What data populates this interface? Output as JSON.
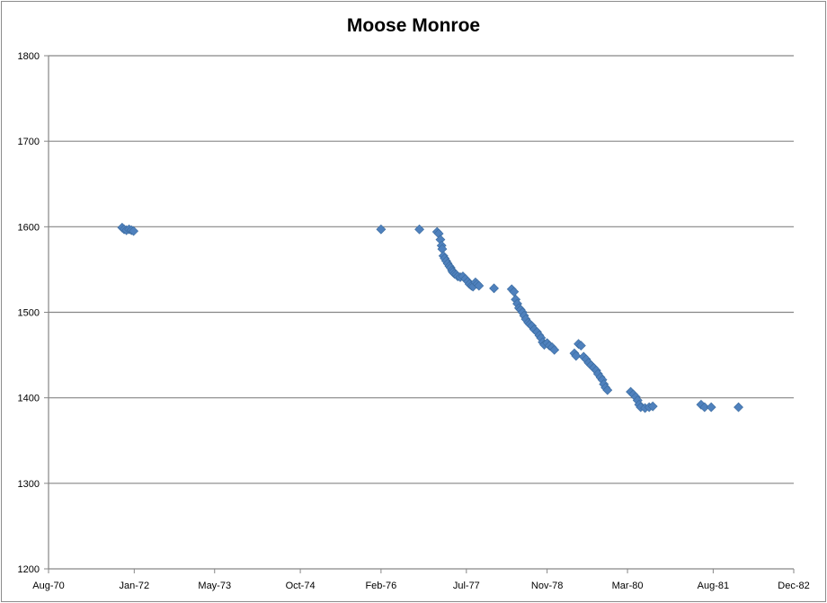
{
  "chart_data": {
    "type": "scatter",
    "title": "Moose Monroe",
    "xlabel": "",
    "ylabel": "",
    "x_axis": {
      "kind": "date",
      "min": "1970-08-01",
      "max": "1982-12-01",
      "ticks": [
        "1970-08-01",
        "1972-01-01",
        "1973-05-01",
        "1974-10-01",
        "1976-02-01",
        "1977-07-01",
        "1978-11-01",
        "1980-03-01",
        "1981-08-01",
        "1982-12-01"
      ],
      "tick_labels": [
        "Aug-70",
        "Jan-72",
        "May-73",
        "Oct-74",
        "Feb-76",
        "Jul-77",
        "Nov-78",
        "Mar-80",
        "Aug-81",
        "Dec-82"
      ]
    },
    "y_axis": {
      "min": 1200,
      "max": 1800,
      "ticks": [
        1200,
        1300,
        1400,
        1500,
        1600,
        1700,
        1800
      ],
      "tick_labels": [
        "1200",
        "1300",
        "1400",
        "1500",
        "1600",
        "1700",
        "1800"
      ]
    },
    "grid": "horizontal",
    "legend": "none",
    "marker": {
      "shape": "diamond",
      "color": "#4F81BD"
    },
    "series": [
      {
        "points": [
          {
            "x": "1971-10-20",
            "y": 1599
          },
          {
            "x": "1971-11-01",
            "y": 1597
          },
          {
            "x": "1971-11-15",
            "y": 1596
          },
          {
            "x": "1971-12-01",
            "y": 1597
          },
          {
            "x": "1971-12-15",
            "y": 1596
          },
          {
            "x": "1971-12-28",
            "y": 1595
          },
          {
            "x": "1976-02-01",
            "y": 1597
          },
          {
            "x": "1976-09-20",
            "y": 1597
          },
          {
            "x": "1977-01-05",
            "y": 1594
          },
          {
            "x": "1977-01-15",
            "y": 1592
          },
          {
            "x": "1977-01-25",
            "y": 1585
          },
          {
            "x": "1977-02-01",
            "y": 1578
          },
          {
            "x": "1977-02-05",
            "y": 1574
          },
          {
            "x": "1977-02-12",
            "y": 1566
          },
          {
            "x": "1977-02-20",
            "y": 1563
          },
          {
            "x": "1977-03-01",
            "y": 1560
          },
          {
            "x": "1977-03-10",
            "y": 1557
          },
          {
            "x": "1977-03-20",
            "y": 1554
          },
          {
            "x": "1977-03-28",
            "y": 1552
          },
          {
            "x": "1977-04-05",
            "y": 1549
          },
          {
            "x": "1977-04-10",
            "y": 1547
          },
          {
            "x": "1977-04-20",
            "y": 1545
          },
          {
            "x": "1977-05-01",
            "y": 1544
          },
          {
            "x": "1977-05-10",
            "y": 1542
          },
          {
            "x": "1977-05-25",
            "y": 1541
          },
          {
            "x": "1977-06-10",
            "y": 1542
          },
          {
            "x": "1977-06-25",
            "y": 1539
          },
          {
            "x": "1977-07-10",
            "y": 1536
          },
          {
            "x": "1977-07-20",
            "y": 1533
          },
          {
            "x": "1977-08-01",
            "y": 1531
          },
          {
            "x": "1977-08-10",
            "y": 1530
          },
          {
            "x": "1977-08-25",
            "y": 1535
          },
          {
            "x": "1977-09-05",
            "y": 1533
          },
          {
            "x": "1977-09-15",
            "y": 1531
          },
          {
            "x": "1977-12-15",
            "y": 1528
          },
          {
            "x": "1978-04-01",
            "y": 1527
          },
          {
            "x": "1978-04-15",
            "y": 1524
          },
          {
            "x": "1978-04-25",
            "y": 1515
          },
          {
            "x": "1978-05-05",
            "y": 1510
          },
          {
            "x": "1978-05-15",
            "y": 1505
          },
          {
            "x": "1978-05-25",
            "y": 1503
          },
          {
            "x": "1978-06-05",
            "y": 1500
          },
          {
            "x": "1978-06-15",
            "y": 1496
          },
          {
            "x": "1978-06-25",
            "y": 1492
          },
          {
            "x": "1978-07-10",
            "y": 1488
          },
          {
            "x": "1978-07-20",
            "y": 1486
          },
          {
            "x": "1978-08-01",
            "y": 1484
          },
          {
            "x": "1978-08-15",
            "y": 1480
          },
          {
            "x": "1978-09-01",
            "y": 1477
          },
          {
            "x": "1978-09-15",
            "y": 1473
          },
          {
            "x": "1978-09-25",
            "y": 1470
          },
          {
            "x": "1978-10-05",
            "y": 1465
          },
          {
            "x": "1978-10-15",
            "y": 1462
          },
          {
            "x": "1978-11-01",
            "y": 1464
          },
          {
            "x": "1978-11-15",
            "y": 1461
          },
          {
            "x": "1978-12-01",
            "y": 1459
          },
          {
            "x": "1978-12-15",
            "y": 1456
          },
          {
            "x": "1979-04-15",
            "y": 1452
          },
          {
            "x": "1979-04-25",
            "y": 1449
          },
          {
            "x": "1979-05-10",
            "y": 1463
          },
          {
            "x": "1979-05-25",
            "y": 1461
          },
          {
            "x": "1979-06-10",
            "y": 1448
          },
          {
            "x": "1979-06-25",
            "y": 1445
          },
          {
            "x": "1979-07-10",
            "y": 1441
          },
          {
            "x": "1979-07-25",
            "y": 1438
          },
          {
            "x": "1979-08-10",
            "y": 1435
          },
          {
            "x": "1979-08-25",
            "y": 1432
          },
          {
            "x": "1979-09-05",
            "y": 1428
          },
          {
            "x": "1979-09-20",
            "y": 1424
          },
          {
            "x": "1979-10-01",
            "y": 1421
          },
          {
            "x": "1979-10-10",
            "y": 1416
          },
          {
            "x": "1979-10-20",
            "y": 1412
          },
          {
            "x": "1979-11-01",
            "y": 1409
          },
          {
            "x": "1980-03-20",
            "y": 1407
          },
          {
            "x": "1980-04-05",
            "y": 1404
          },
          {
            "x": "1980-04-20",
            "y": 1401
          },
          {
            "x": "1980-05-01",
            "y": 1397
          },
          {
            "x": "1980-05-10",
            "y": 1392
          },
          {
            "x": "1980-05-20",
            "y": 1389
          },
          {
            "x": "1980-06-15",
            "y": 1388
          },
          {
            "x": "1980-07-10",
            "y": 1389
          },
          {
            "x": "1980-08-01",
            "y": 1390
          },
          {
            "x": "1981-05-20",
            "y": 1392
          },
          {
            "x": "1981-06-10",
            "y": 1389
          },
          {
            "x": "1981-07-20",
            "y": 1389
          },
          {
            "x": "1982-01-01",
            "y": 1389
          }
        ]
      }
    ]
  }
}
